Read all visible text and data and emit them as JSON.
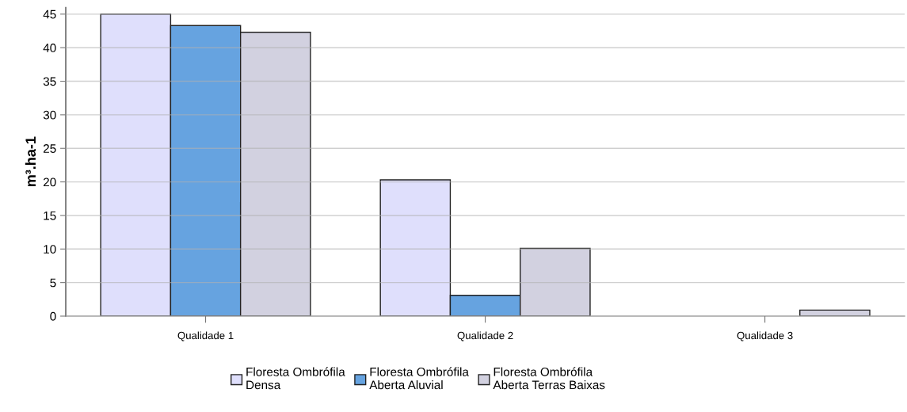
{
  "chart_data": {
    "type": "bar",
    "ylabel": "m³.ha-1",
    "categories": [
      "Qualidade 1",
      "Qualidade 2",
      "Qualidade 3"
    ],
    "series": [
      {
        "name": "Floresta Ombrófila\nDensa",
        "color": "#dfdffc",
        "values": [
          45.0,
          20.3,
          0
        ]
      },
      {
        "name": "Floresta Ombrófila\nAberta Aluvial",
        "color": "#66a3e0",
        "values": [
          43.3,
          3.1,
          0
        ]
      },
      {
        "name": "Floresta Ombrófila\nAberta Terras Baixas",
        "color": "#d2d1e0",
        "values": [
          42.3,
          10.1,
          0.9
        ]
      }
    ],
    "ylim": [
      0,
      46
    ],
    "yticks": [
      0,
      5,
      10,
      15,
      20,
      25,
      30,
      35,
      40,
      45
    ],
    "grid": "y",
    "legend": "bottom"
  }
}
